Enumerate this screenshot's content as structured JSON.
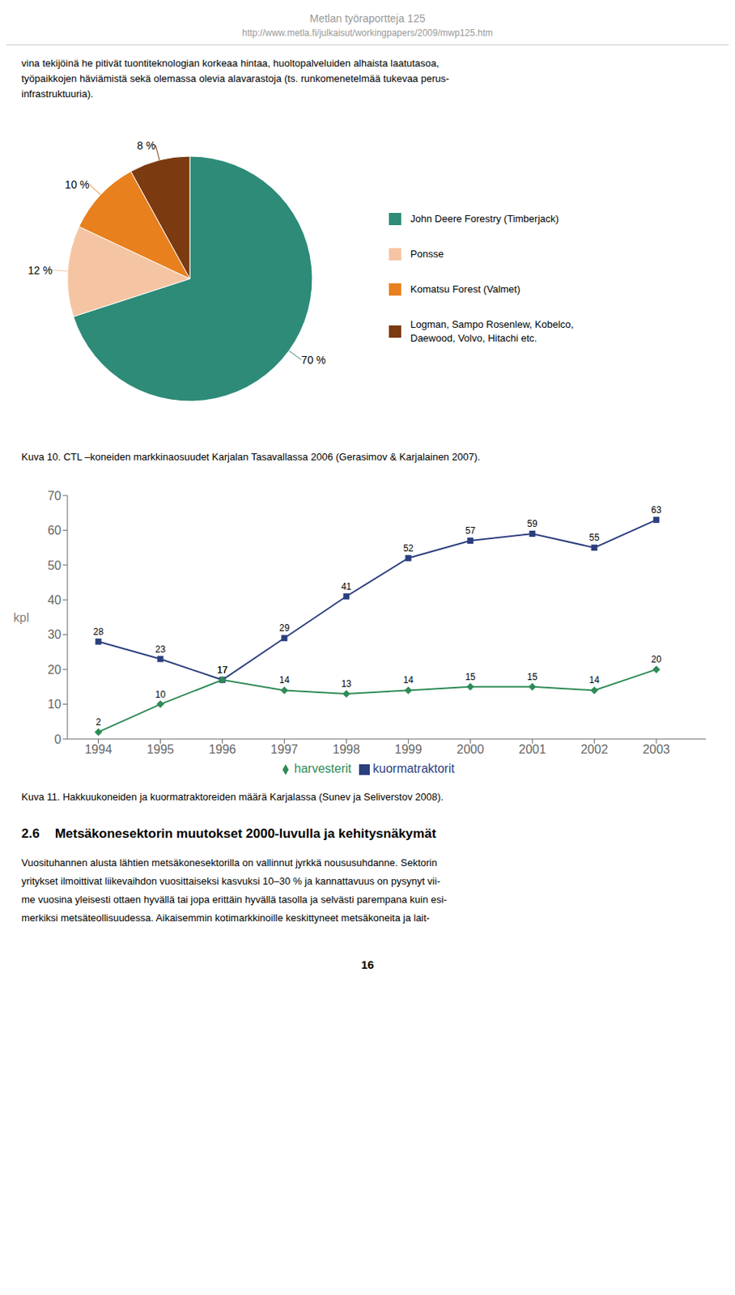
{
  "page": {
    "header": [
      "Metlan työraportteja 125",
      "http://www.metla.fi/julkaisut/workingpapers/2009/mwp125.htm"
    ],
    "body_before": [
      "vina tekijöinä he pitivät tuontiteknologian korkeaa hintaa, huoltopalveluiden alhaista laatutasoa,",
      "työpaikkojen häviämistä sekä olemassa olevia alavarastoja (ts. runkomenetelmää tukevaa perus-",
      "infrastruktuuria)."
    ],
    "section_heading": [
      "2.6",
      "Metsäkonesektorin muutokset 2000-luvulla ja kehitysnäkymät"
    ],
    "body_after": [
      "Vuosituhannen alusta lähtien metsäkonesektorilla on vallinnut jyrkkä noususuhdanne. Sektorin",
      "yritykset ilmoittivat liikevaihdon vuosittaiseksi kasvuksi 10–30 % ja kannattavuus on pysynyt vii-",
      "me vuosina yleisesti ottaen hyvällä tai jopa erittäin hyvällä tasolla ja selvästi parempana kuin esi-",
      "merkiksi metsäteollisuudessa. Aikaisemmin kotimarkkinoille keskittyneet metsäkoneita ja lait-"
    ],
    "page_number": "16"
  },
  "chart_data": [
    {
      "type": "pie",
      "categories": [
        "John Deere Forestry (Timberjack)",
        "Ponsse",
        "Komatsu Forest (Valmet)",
        "Logman, Sampo Rosenlew, Kobelco,\nDaewood, Volvo, Hitachi etc."
      ],
      "values": [
        70,
        12,
        10,
        8
      ],
      "value_labels": [
        "70 %",
        "12 %",
        "10 %",
        "8 %"
      ],
      "colors": [
        "#2d8b78",
        "#f5c5a3",
        "#e8801e",
        "#7b3a10"
      ],
      "data_labels": true,
      "legend": "right",
      "caption": "Kuva 10. CTL –koneiden markkinaosuudet Karjalan Tasavallassa 2006 (Gerasimov & Karjalainen 2007)."
    },
    {
      "type": "line",
      "x": [
        1994,
        1995,
        1996,
        1997,
        1998,
        1999,
        2000,
        2001,
        2002,
        2003
      ],
      "series": [
        {
          "name": "kuormatraktorit",
          "color": "#2b3f7e",
          "marker": "square",
          "values": [
            28,
            23,
            17,
            29,
            41,
            52,
            57,
            59,
            55,
            63
          ]
        },
        {
          "name": "harvesterit",
          "color": "#2e8b57",
          "marker": "diamond",
          "values": [
            2,
            10,
            17,
            14,
            13,
            14,
            15,
            15,
            14,
            20
          ]
        }
      ],
      "xlim": [
        1993.5,
        2003.8
      ],
      "xticks": [
        1994,
        1995,
        1996,
        1997,
        1998,
        1999,
        2000,
        2001,
        2002,
        2003
      ],
      "ylim": [
        0,
        70
      ],
      "yticks": [
        0,
        10,
        20,
        30,
        40,
        50,
        60,
        70
      ],
      "ylabel": "kpl",
      "data_labels": true,
      "legend": "bottom",
      "grid": false,
      "caption": "Kuva 11. Hakkuukoneiden ja kuormatraktoreiden määrä Karjalassa (Sunev ja Seliverstov 2008)."
    }
  ]
}
